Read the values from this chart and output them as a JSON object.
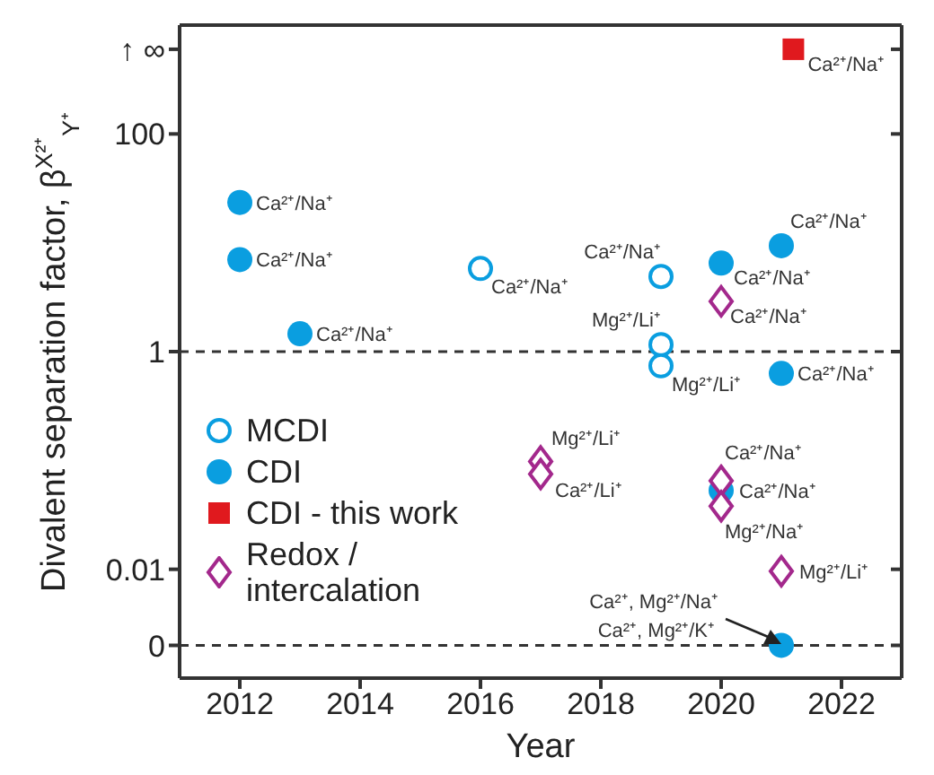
{
  "chart_data": {
    "type": "scatter",
    "xlabel": "Year",
    "ylabel": "Divalent separation factor, β$^{X²⁺}$$_{Y⁺}$",
    "log": "y",
    "xlim": [
      2011,
      2023
    ],
    "xticks": [
      2012,
      2014,
      2016,
      2018,
      2020,
      2022
    ],
    "ylim": [
      0.001,
      1000
    ],
    "yticks": [
      {
        "value": 0.002,
        "label": "0"
      },
      0.01,
      1,
      100,
      {
        "value": 600,
        "label": "↑ ∞"
      }
    ],
    "legend": "left",
    "ref_lines": [
      {
        "axis": "y",
        "value": 1,
        "label": null,
        "color": "#333333",
        "line_style": "dashed"
      },
      {
        "axis": "y",
        "value": 0.002,
        "label": null,
        "color": "#333333",
        "line_style": "dashed"
      }
    ],
    "series": [
      {
        "name": "MCDI",
        "color": "#0a9ee0",
        "marker": "circle",
        "x": [
          2016,
          2019,
          2019,
          2019
        ],
        "values": [
          5.8,
          4.9,
          1.16,
          0.74
        ]
      },
      {
        "name": "CDI",
        "color": "#0a9ee0",
        "marker": "circle",
        "x": [
          2012,
          2012,
          2013,
          2020,
          2021,
          2021,
          2020,
          2021
        ],
        "values": [
          23.5,
          7.0,
          1.46,
          6.5,
          9.4,
          0.63,
          0.053,
          0.002
        ]
      },
      {
        "name": "CDI - this work",
        "color": "#e0191e",
        "marker": "square",
        "x": [
          2021.2
        ],
        "values": [
          600
        ]
      },
      {
        "name": "Redox / intercalation",
        "color": "#a3288c",
        "marker": "diamond",
        "x": [
          2020,
          2017,
          2017,
          2020,
          2020,
          2021
        ],
        "values": [
          2.9,
          0.098,
          0.075,
          0.065,
          0.038,
          0.0096
        ]
      }
    ],
    "annotations": [
      {
        "text": "Ca²⁺/Na⁺",
        "x": 2012,
        "y": 23.5
      },
      {
        "text": "Ca²⁺/Na⁺",
        "x": 2012,
        "y": 7.0
      },
      {
        "text": "Ca²⁺/Na⁺",
        "x": 2013,
        "y": 1.46
      },
      {
        "text": "Ca²⁺/Na⁺",
        "x": 2016,
        "y": 5.8
      },
      {
        "text": "Ca²⁺/Na⁺",
        "x": 2019,
        "y": 4.9
      },
      {
        "text": "Mg²⁺/Li⁺",
        "x": 2019,
        "y": 1.16
      },
      {
        "text": "Mg²⁺/Li⁺",
        "x": 2019,
        "y": 0.74
      },
      {
        "text": "Ca²⁺/Na⁺",
        "x": 2020,
        "y": 6.5
      },
      {
        "text": "Ca²⁺/Na⁺",
        "x": 2021,
        "y": 9.4
      },
      {
        "text": "Ca²⁺/Na⁺",
        "x": 2020,
        "y": 2.9
      },
      {
        "text": "Ca²⁺/Na⁺",
        "x": 2021,
        "y": 0.63
      },
      {
        "text": "Mg²⁺/Li⁺",
        "x": 2017,
        "y": 0.098
      },
      {
        "text": "Ca²⁺/Li⁺",
        "x": 2017,
        "y": 0.075
      },
      {
        "text": "Ca²⁺/Na⁺",
        "x": 2020,
        "y": 0.065
      },
      {
        "text": "Ca²⁺/Na⁺",
        "x": 2020,
        "y": 0.053
      },
      {
        "text": "Mg²⁺/Na⁺",
        "x": 2020,
        "y": 0.038
      },
      {
        "text": "Mg²⁺/Li⁺",
        "x": 2021,
        "y": 0.0096
      },
      "Ca²⁺, Mg²⁺/Na⁺",
      "Ca²⁺, Mg²⁺/K⁺",
      {
        "text": "Ca²⁺/Na⁺",
        "x": 2021.2,
        "y": 600
      }
    ]
  }
}
